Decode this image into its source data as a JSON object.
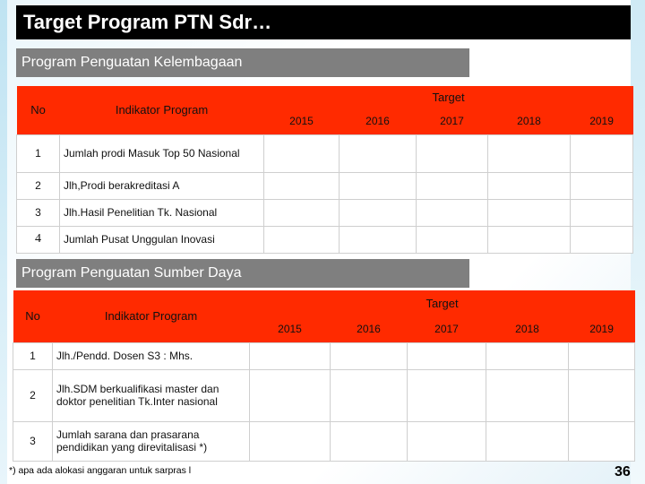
{
  "title": "Target Program PTN Sdr…",
  "section1": {
    "heading": "Program Penguatan Kelembagaan",
    "col_no": "No",
    "col_indikator": "Indikator Program",
    "col_target": "Target",
    "years": [
      "2015",
      "2016",
      "2017",
      "2018",
      "2019"
    ],
    "rows": [
      {
        "no": "1",
        "indikator": "Jumlah prodi Masuk Top 50 Nasional"
      },
      {
        "no": "2",
        "indikator": "Jlh,Prodi berakreditasi A"
      },
      {
        "no": "3",
        "indikator": "Jlh.Hasil Penelitian Tk. Nasional"
      },
      {
        "no": "4",
        "indikator": "Jumlah Pusat Unggulan Inovasi"
      }
    ]
  },
  "section2": {
    "heading": "Program Penguatan Sumber Daya",
    "col_no": "No",
    "col_indikator": "Indikator Program",
    "col_target": "Target",
    "years": [
      "2015",
      "2016",
      "2017",
      "2018",
      "2019"
    ],
    "rows": [
      {
        "no": "1",
        "indikator": "Jlh./Pendd. Dosen S3 : Mhs."
      },
      {
        "no": "2",
        "indikator": "Jlh.SDM berkualifikasi master dan doktor penelitian Tk.Inter nasional"
      },
      {
        "no": "3",
        "indikator": "Jumlah sarana dan prasarana pendidikan yang direvitalisasi *)"
      }
    ]
  },
  "footnote": "*) apa ada alokasi anggaran untuk sarpras l",
  "page_number": "36",
  "colors": {
    "header_red": "#ff2a00",
    "section_gray": "#7f7f7f",
    "title_black": "#000000"
  }
}
